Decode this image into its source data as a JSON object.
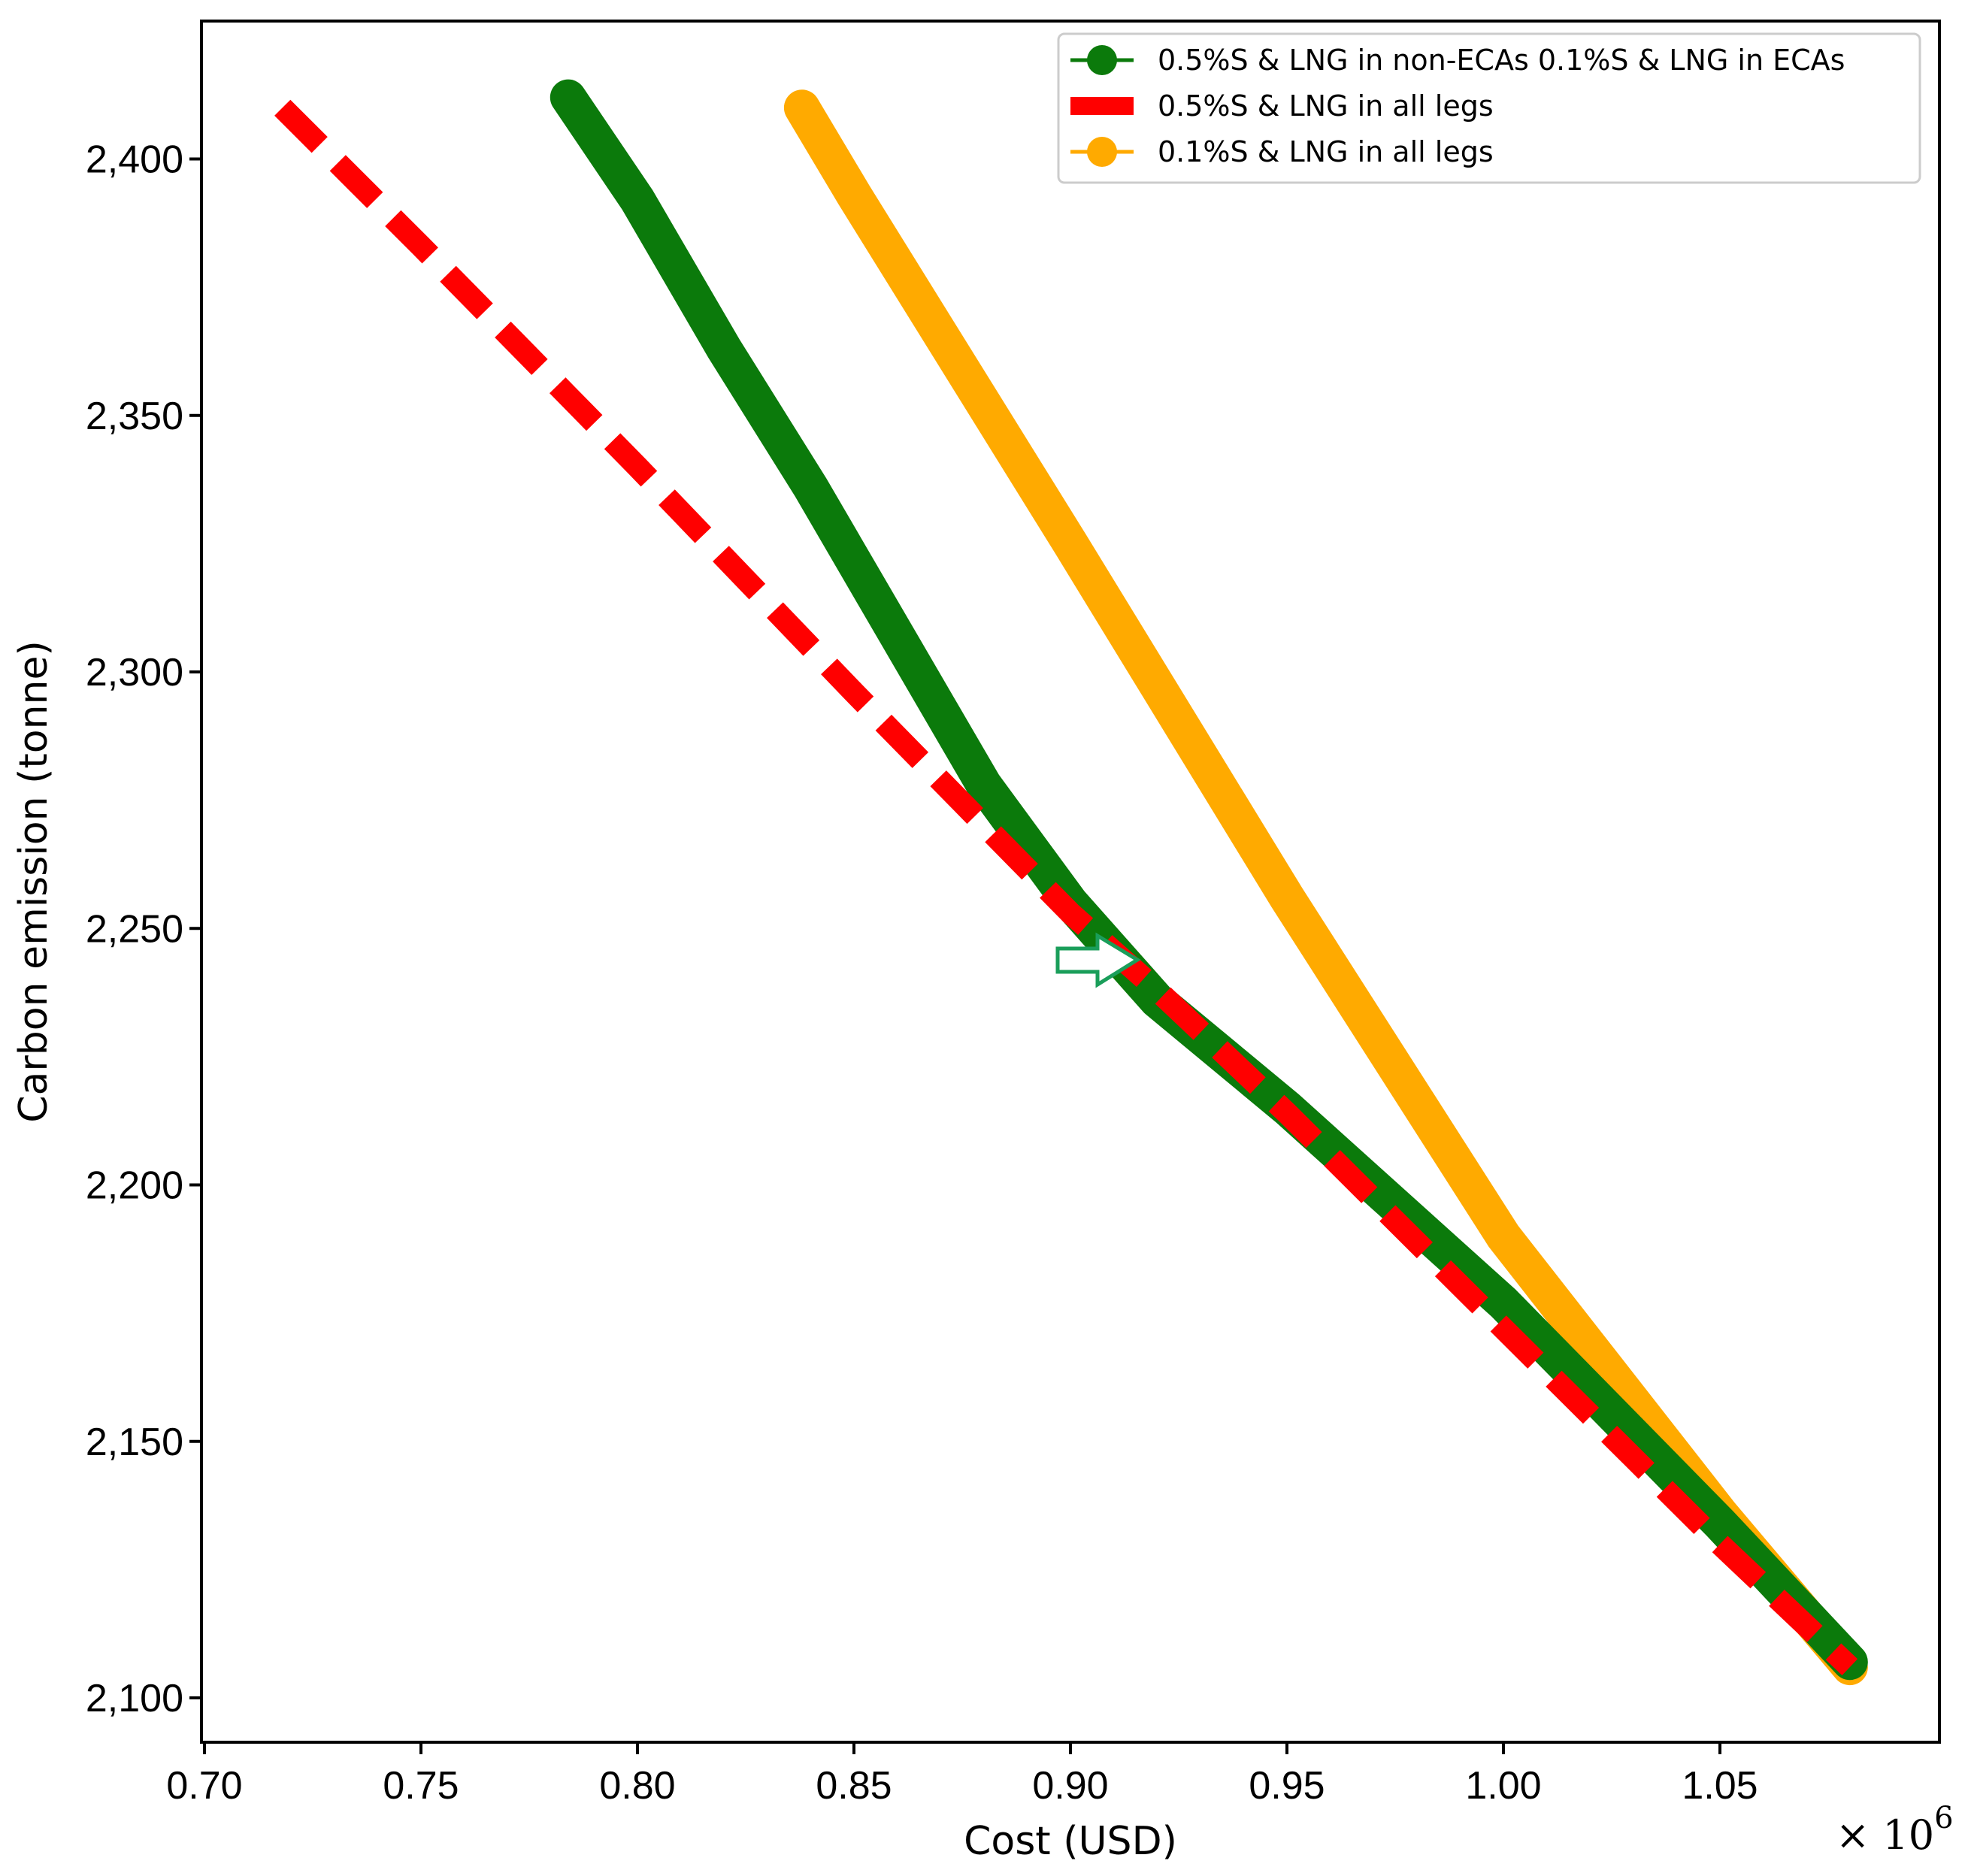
{
  "chart_data": {
    "type": "line",
    "title": "",
    "xlabel": "Cost (USD)",
    "ylabel": "Carbon emission (tonne)",
    "x_multiplier": "× 10",
    "x_multiplier_exponent": "6",
    "xlim": [
      0.7,
      1.1
    ],
    "ylim": [
      2095,
      2425
    ],
    "xticks": [
      0.7,
      0.75,
      0.8,
      0.85,
      0.9,
      0.95,
      1.0,
      1.05
    ],
    "xtick_labels": [
      "0.70",
      "0.75",
      "0.80",
      "0.85",
      "0.90",
      "0.95",
      "1.00",
      "1.05"
    ],
    "yticks": [
      2100,
      2150,
      2200,
      2250,
      2300,
      2350,
      2400
    ],
    "ytick_labels": [
      "2,100",
      "2,150",
      "2,200",
      "2,250",
      "2,300",
      "2,350",
      "2,400"
    ],
    "grid": false,
    "legend_position": "top-right",
    "series": [
      {
        "name": "0.5%S & LNG in non-ECAs 0.1%S & LNG in ECAs",
        "color": "#0b7a0b",
        "style": "markers",
        "x": [
          0.784,
          0.8,
          0.82,
          0.84,
          0.86,
          0.88,
          0.9,
          0.92,
          0.95,
          1.0,
          1.05,
          1.08
        ],
        "y": [
          2412,
          2392,
          2363,
          2336,
          2307,
          2278,
          2255,
          2236,
          2215,
          2177,
          2134,
          2107
        ]
      },
      {
        "name": "0.5%S & LNG in all legs",
        "color": "#ff0000",
        "style": "dashed",
        "x": [
          0.718,
          0.75,
          0.8,
          0.85,
          0.9,
          0.92,
          0.95,
          1.0,
          1.05,
          1.08
        ],
        "y": [
          2410,
          2383,
          2340,
          2296,
          2253,
          2238,
          2214,
          2172,
          2130,
          2106
        ]
      },
      {
        "name": "0.1%S & LNG in all legs",
        "color": "#ffaa00",
        "style": "markers",
        "x": [
          0.838,
          0.85,
          0.9,
          0.95,
          1.0,
          1.05,
          1.08
        ],
        "y": [
          2410,
          2393,
          2325,
          2256,
          2190,
          2136,
          2106
        ]
      }
    ],
    "annotations": [
      {
        "type": "arrow",
        "description": "outlined right arrow pointing at curve junction",
        "color": "#1a9e5a",
        "x": 0.909,
        "y": 2244
      }
    ]
  }
}
